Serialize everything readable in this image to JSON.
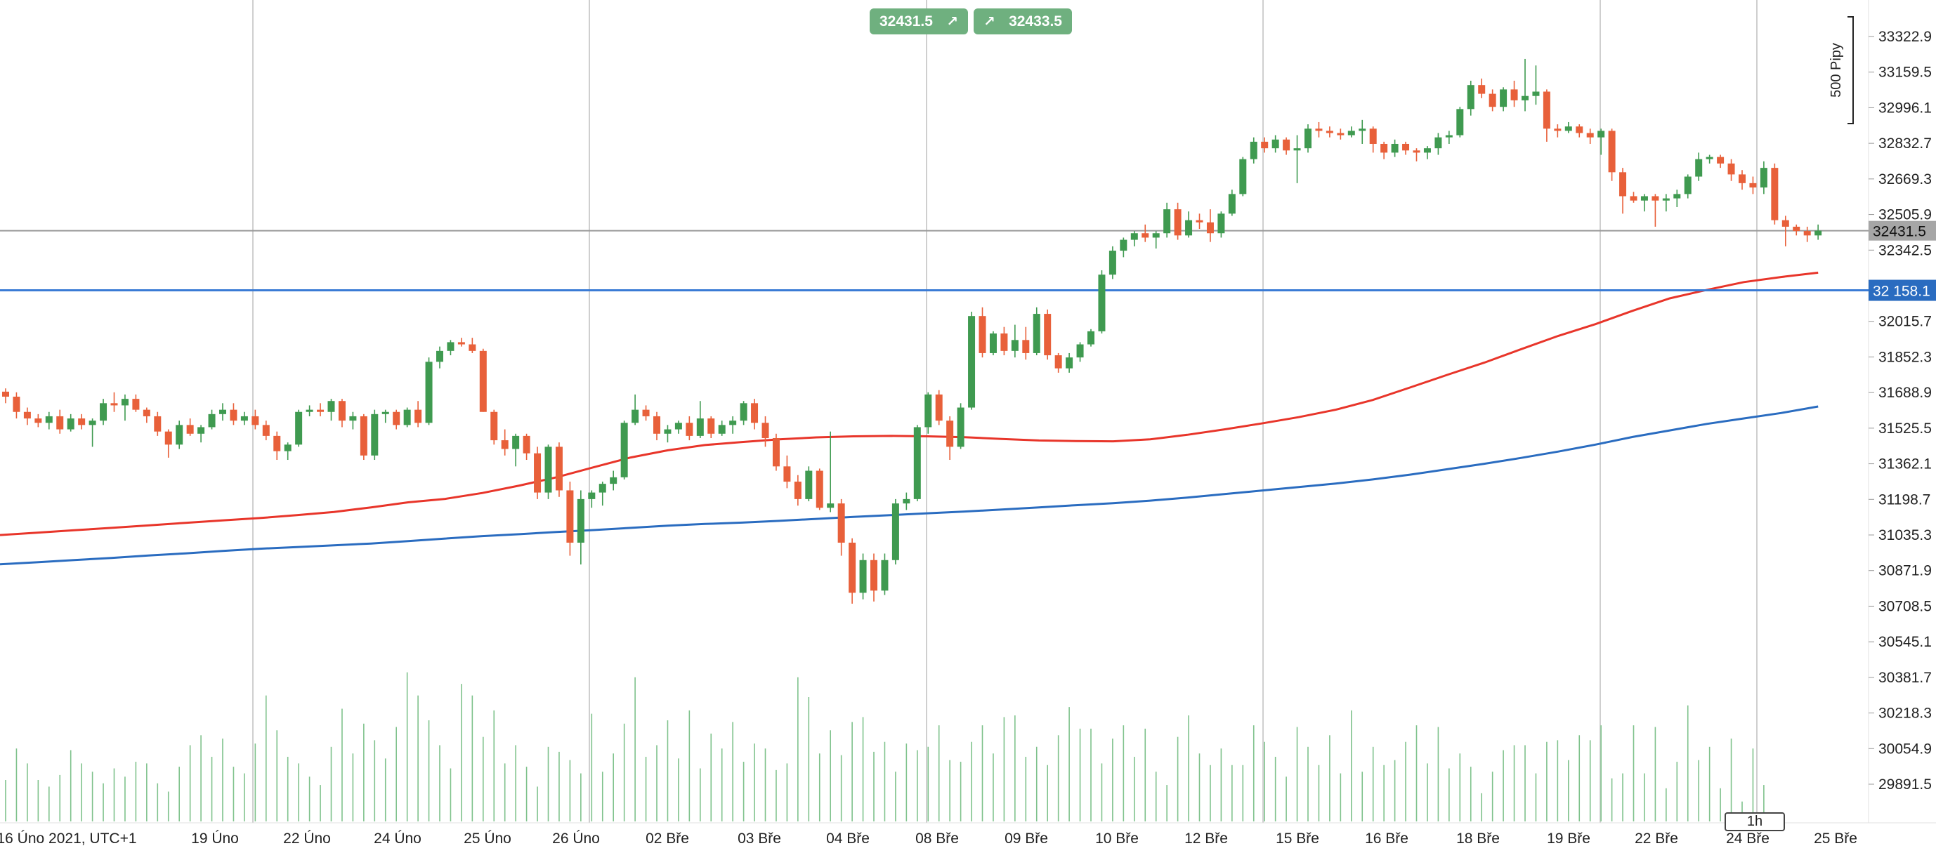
{
  "toolbar": {
    "bid_price": "32431.5",
    "ask_price": "32433.5",
    "bid_arrow_icon": "arrow-up-right",
    "ask_arrow_icon": "arrow-up-right"
  },
  "timeframe": "1h",
  "pips_label": "500 Pipy",
  "colors": {
    "bull": "#3f9a50",
    "bear": "#e8603a",
    "ma_fast": "#e8352a",
    "ma_slow": "#2a6cc0",
    "volume": "#7fc28c",
    "hline": "#3a7bd5",
    "current_line": "#9a9a9a"
  },
  "chart_data": {
    "type": "candlestick",
    "x_labels": [
      "16 Úno 2021, UTC+1",
      "19 Úno",
      "22 Úno",
      "24 Úno",
      "25 Úno",
      "26 Úno",
      "02 Bře",
      "03 Bře",
      "04 Bře",
      "08 Bře",
      "09 Bře",
      "10 Bře",
      "12 Bře",
      "15 Bře",
      "16 Bře",
      "18 Bře",
      "19 Bře",
      "22 Bře",
      "24 Bře",
      "25 Bře"
    ],
    "y_ticks": [
      "33322.9",
      "33159.5",
      "32996.1",
      "32832.7",
      "32669.3",
      "32505.9",
      "32342.5",
      "32015.7",
      "31852.3",
      "31688.9",
      "31525.5",
      "31362.1",
      "31198.7",
      "31035.3",
      "30871.9",
      "30708.5",
      "30545.1",
      "30381.7",
      "30218.3",
      "30054.9",
      "29891.5"
    ],
    "ylim": [
      29846,
      33400
    ],
    "current_price": 32431.5,
    "current_price_label": "32431.5",
    "horizontal_line": 32158.1,
    "horizontal_line_label": "32 158.1",
    "vertical_gridline_labels": [
      "19 Úno",
      "25 Úno",
      "08 Bře",
      "15 Bře",
      "19 Bře",
      "24 Bře"
    ],
    "candles": [
      [
        31693,
        31708,
        31640,
        31670
      ],
      [
        31670,
        31690,
        31570,
        31600
      ],
      [
        31600,
        31620,
        31540,
        31570
      ],
      [
        31570,
        31590,
        31530,
        31550
      ],
      [
        31550,
        31600,
        31520,
        31580
      ],
      [
        31580,
        31610,
        31500,
        31520
      ],
      [
        31520,
        31590,
        31510,
        31570
      ],
      [
        31570,
        31590,
        31520,
        31540
      ],
      [
        31540,
        31570,
        31440,
        31560
      ],
      [
        31560,
        31660,
        31540,
        31640
      ],
      [
        31640,
        31690,
        31600,
        31630
      ],
      [
        31630,
        31680,
        31560,
        31660
      ],
      [
        31660,
        31680,
        31600,
        31610
      ],
      [
        31610,
        31620,
        31550,
        31580
      ],
      [
        31580,
        31600,
        31490,
        31510
      ],
      [
        31510,
        31520,
        31390,
        31450
      ],
      [
        31450,
        31560,
        31430,
        31540
      ],
      [
        31540,
        31570,
        31490,
        31500
      ],
      [
        31500,
        31540,
        31460,
        31530
      ],
      [
        31530,
        31610,
        31520,
        31590
      ],
      [
        31590,
        31640,
        31560,
        31610
      ],
      [
        31610,
        31640,
        31540,
        31560
      ],
      [
        31560,
        31600,
        31540,
        31580
      ],
      [
        31580,
        31610,
        31520,
        31540
      ],
      [
        31540,
        31560,
        31470,
        31490
      ],
      [
        31490,
        31510,
        31380,
        31420
      ],
      [
        31420,
        31460,
        31380,
        31450
      ],
      [
        31450,
        31610,
        31440,
        31600
      ],
      [
        31600,
        31630,
        31580,
        31610
      ],
      [
        31610,
        31640,
        31580,
        31600
      ],
      [
        31600,
        31660,
        31560,
        31650
      ],
      [
        31650,
        31660,
        31530,
        31560
      ],
      [
        31560,
        31600,
        31520,
        31580
      ],
      [
        31580,
        31590,
        31380,
        31400
      ],
      [
        31400,
        31610,
        31380,
        31590
      ],
      [
        31590,
        31610,
        31550,
        31600
      ],
      [
        31600,
        31610,
        31520,
        31540
      ],
      [
        31540,
        31620,
        31530,
        31610
      ],
      [
        31610,
        31650,
        31530,
        31550
      ],
      [
        31550,
        31850,
        31540,
        31830
      ],
      [
        31830,
        31900,
        31800,
        31880
      ],
      [
        31880,
        31930,
        31860,
        31920
      ],
      [
        31920,
        31940,
        31900,
        31910
      ],
      [
        31910,
        31940,
        31870,
        31880
      ],
      [
        31880,
        31890,
        31600,
        31600
      ],
      [
        31600,
        31610,
        31450,
        31470
      ],
      [
        31470,
        31520,
        31400,
        31430
      ],
      [
        31430,
        31500,
        31350,
        31490
      ],
      [
        31490,
        31500,
        31380,
        31410
      ],
      [
        31410,
        31440,
        31200,
        31230
      ],
      [
        31230,
        31450,
        31200,
        31440
      ],
      [
        31440,
        31460,
        31210,
        31240
      ],
      [
        31240,
        31280,
        30940,
        31000
      ],
      [
        31000,
        31240,
        30900,
        31200
      ],
      [
        31200,
        31240,
        31160,
        31230
      ],
      [
        31230,
        31280,
        31170,
        31270
      ],
      [
        31270,
        31330,
        31240,
        31300
      ],
      [
        31300,
        31560,
        31290,
        31550
      ],
      [
        31550,
        31680,
        31540,
        31610
      ],
      [
        31610,
        31630,
        31560,
        31580
      ],
      [
        31580,
        31600,
        31470,
        31500
      ],
      [
        31500,
        31540,
        31460,
        31520
      ],
      [
        31520,
        31560,
        31500,
        31550
      ],
      [
        31550,
        31580,
        31470,
        31490
      ],
      [
        31490,
        31650,
        31480,
        31570
      ],
      [
        31570,
        31580,
        31480,
        31500
      ],
      [
        31500,
        31560,
        31490,
        31540
      ],
      [
        31540,
        31580,
        31500,
        31560
      ],
      [
        31560,
        31650,
        31540,
        31640
      ],
      [
        31640,
        31660,
        31520,
        31550
      ],
      [
        31550,
        31580,
        31440,
        31480
      ],
      [
        31480,
        31500,
        31330,
        31350
      ],
      [
        31350,
        31400,
        31250,
        31280
      ],
      [
        31280,
        31310,
        31170,
        31200
      ],
      [
        31200,
        31350,
        31190,
        31330
      ],
      [
        31330,
        31340,
        31150,
        31160
      ],
      [
        31160,
        31510,
        31140,
        31180
      ],
      [
        31180,
        31200,
        30940,
        31000
      ],
      [
        31000,
        31020,
        30720,
        30770
      ],
      [
        30770,
        30950,
        30740,
        30920
      ],
      [
        30920,
        30950,
        30730,
        30780
      ],
      [
        30780,
        30950,
        30760,
        30920
      ],
      [
        30920,
        31200,
        30900,
        31180
      ],
      [
        31180,
        31230,
        31150,
        31200
      ],
      [
        31200,
        31540,
        31190,
        31530
      ],
      [
        31530,
        31690,
        31500,
        31680
      ],
      [
        31680,
        31700,
        31540,
        31560
      ],
      [
        31560,
        31580,
        31380,
        31440
      ],
      [
        31440,
        31640,
        31430,
        31620
      ],
      [
        31620,
        32060,
        31610,
        32040
      ],
      [
        32040,
        32080,
        31850,
        31870
      ],
      [
        31870,
        31970,
        31860,
        31960
      ],
      [
        31960,
        31990,
        31860,
        31880
      ],
      [
        31880,
        32000,
        31850,
        31930
      ],
      [
        31930,
        31990,
        31840,
        31870
      ],
      [
        31870,
        32080,
        31860,
        32050
      ],
      [
        32050,
        32070,
        31840,
        31860
      ],
      [
        31860,
        31870,
        31780,
        31800
      ],
      [
        31800,
        31870,
        31780,
        31850
      ],
      [
        31850,
        31920,
        31830,
        31910
      ],
      [
        31910,
        31980,
        31900,
        31970
      ],
      [
        31970,
        32250,
        31960,
        32230
      ],
      [
        32230,
        32360,
        32210,
        32340
      ],
      [
        32340,
        32400,
        32310,
        32390
      ],
      [
        32390,
        32430,
        32360,
        32420
      ],
      [
        32420,
        32460,
        32380,
        32400
      ],
      [
        32400,
        32430,
        32350,
        32420
      ],
      [
        32420,
        32560,
        32400,
        32530
      ],
      [
        32530,
        32560,
        32390,
        32410
      ],
      [
        32410,
        32520,
        32400,
        32480
      ],
      [
        32480,
        32510,
        32440,
        32470
      ],
      [
        32470,
        32530,
        32380,
        32420
      ],
      [
        32420,
        32520,
        32400,
        32510
      ],
      [
        32510,
        32620,
        32500,
        32600
      ],
      [
        32600,
        32770,
        32590,
        32760
      ],
      [
        32760,
        32860,
        32740,
        32840
      ],
      [
        32840,
        32860,
        32790,
        32810
      ],
      [
        32810,
        32870,
        32790,
        32850
      ],
      [
        32850,
        32860,
        32780,
        32800
      ],
      [
        32800,
        32870,
        32650,
        32810
      ],
      [
        32810,
        32920,
        32790,
        32900
      ],
      [
        32900,
        32930,
        32860,
        32890
      ],
      [
        32890,
        32910,
        32860,
        32880
      ],
      [
        32880,
        32900,
        32850,
        32870
      ],
      [
        32870,
        32910,
        32860,
        32890
      ],
      [
        32890,
        32940,
        32830,
        32900
      ],
      [
        32900,
        32910,
        32790,
        32830
      ],
      [
        32830,
        32840,
        32760,
        32790
      ],
      [
        32790,
        32850,
        32770,
        32830
      ],
      [
        32830,
        32840,
        32780,
        32800
      ],
      [
        32800,
        32810,
        32750,
        32790
      ],
      [
        32790,
        32820,
        32760,
        32810
      ],
      [
        32810,
        32880,
        32780,
        32860
      ],
      [
        32860,
        32890,
        32830,
        32870
      ],
      [
        32870,
        33000,
        32860,
        32990
      ],
      [
        32990,
        33120,
        32960,
        33100
      ],
      [
        33100,
        33130,
        33040,
        33060
      ],
      [
        33060,
        33080,
        32980,
        33000
      ],
      [
        33000,
        33090,
        32980,
        33080
      ],
      [
        33080,
        33120,
        33000,
        33030
      ],
      [
        33030,
        33220,
        32980,
        33050
      ],
      [
        33050,
        33190,
        33010,
        33070
      ],
      [
        33070,
        33080,
        32840,
        32900
      ],
      [
        32900,
        32920,
        32860,
        32890
      ],
      [
        32890,
        32930,
        32880,
        32910
      ],
      [
        32910,
        32920,
        32860,
        32880
      ],
      [
        32880,
        32900,
        32830,
        32860
      ],
      [
        32860,
        32900,
        32780,
        32890
      ],
      [
        32890,
        32900,
        32660,
        32700
      ],
      [
        32700,
        32720,
        32510,
        32590
      ],
      [
        32590,
        32610,
        32560,
        32570
      ],
      [
        32570,
        32600,
        32520,
        32590
      ],
      [
        32590,
        32600,
        32450,
        32570
      ],
      [
        32570,
        32600,
        32520,
        32580
      ],
      [
        32580,
        32620,
        32540,
        32600
      ],
      [
        32600,
        32690,
        32580,
        32680
      ],
      [
        32680,
        32790,
        32660,
        32760
      ],
      [
        32760,
        32780,
        32740,
        32770
      ],
      [
        32770,
        32780,
        32720,
        32740
      ],
      [
        32740,
        32760,
        32660,
        32690
      ],
      [
        32690,
        32710,
        32620,
        32650
      ],
      [
        32650,
        32680,
        32600,
        32630
      ],
      [
        32630,
        32750,
        32600,
        32720
      ],
      [
        32720,
        32740,
        32460,
        32480
      ],
      [
        32480,
        32500,
        32360,
        32450
      ],
      [
        32450,
        32460,
        32410,
        32430
      ],
      [
        32430,
        32450,
        32380,
        32410
      ],
      [
        32410,
        32460,
        32390,
        32432
      ]
    ],
    "ma_fast": [
      31035,
      31046,
      31057,
      31068,
      31079,
      31091,
      31102,
      31113,
      31126,
      31141,
      31162,
      31185,
      31201,
      31228,
      31262,
      31300,
      31346,
      31391,
      31424,
      31448,
      31462,
      31474,
      31483,
      31488,
      31490,
      31488,
      31484,
      31476,
      31469,
      31466,
      31465,
      31474,
      31495,
      31520,
      31547,
      31576,
      31610,
      31655,
      31712,
      31770,
      31826,
      31888,
      31949,
      32003,
      32064,
      32121,
      32160,
      32196,
      32219,
      32239
    ],
    "ma_slow": [
      30901,
      30910,
      30920,
      30930,
      30941,
      30951,
      30962,
      30972,
      30980,
      30988,
      30996,
      31007,
      31019,
      31030,
      31039,
      31049,
      31058,
      31068,
      31078,
      31086,
      31092,
      31100,
      31109,
      31118,
      31126,
      31135,
      31143,
      31152,
      31162,
      31172,
      31181,
      31193,
      31207,
      31223,
      31239,
      31255,
      31271,
      31290,
      31312,
      31337,
      31362,
      31389,
      31418,
      31450,
      31485,
      31515,
      31545,
      31570,
      31595,
      31625
    ],
    "volume": [
      0.25,
      0.44,
      0.35,
      0.25,
      0.21,
      0.28,
      0.43,
      0.35,
      0.3,
      0.23,
      0.32,
      0.27,
      0.36,
      0.35,
      0.23,
      0.18,
      0.33,
      0.46,
      0.52,
      0.39,
      0.5,
      0.33,
      0.29,
      0.47,
      0.76,
      0.55,
      0.39,
      0.35,
      0.27,
      0.22,
      0.45,
      0.68,
      0.41,
      0.59,
      0.49,
      0.38,
      0.57,
      0.9,
      0.76,
      0.61,
      0.46,
      0.32,
      0.83,
      0.76,
      0.51,
      0.67,
      0.35,
      0.46,
      0.33,
      0.21,
      0.45,
      0.42,
      0.37,
      0.29,
      0.65,
      0.3,
      0.41,
      0.59,
      0.87,
      0.39,
      0.46,
      0.61,
      0.38,
      0.67,
      0.32,
      0.53,
      0.44,
      0.6,
      0.36,
      0.47,
      0.44,
      0.31,
      0.35,
      0.87,
      0.75,
      0.41,
      0.55,
      0.4,
      0.6,
      0.63,
      0.42,
      0.48,
      0.3,
      0.47,
      0.43,
      0.45,
      0.58,
      0.37,
      0.36,
      0.48,
      0.58,
      0.41,
      0.63,
      0.64,
      0.39,
      0.45,
      0.34,
      0.52,
      0.69,
      0.56,
      0.56,
      0.35,
      0.5,
      0.58,
      0.39,
      0.56,
      0.3,
      0.22,
      0.51,
      0.64,
      0.41,
      0.34,
      0.44,
      0.34,
      0.34,
      0.58,
      0.48,
      0.39,
      0.27,
      0.57,
      0.45,
      0.34,
      0.52,
      0.29,
      0.67,
      0.3,
      0.45,
      0.34,
      0.37,
      0.48,
      0.58,
      0.35,
      0.57,
      0.32,
      0.41,
      0.33,
      0.17,
      0.3,
      0.43,
      0.46,
      0.46,
      0.29,
      0.48,
      0.49,
      0.37,
      0.52,
      0.49,
      0.58,
      0.26,
      0.29,
      0.58,
      0.29,
      0.57,
      0.2,
      0.36,
      0.7,
      0.37,
      0.45,
      0.2,
      0.5,
      0.12,
      0.44,
      0.22
    ]
  }
}
